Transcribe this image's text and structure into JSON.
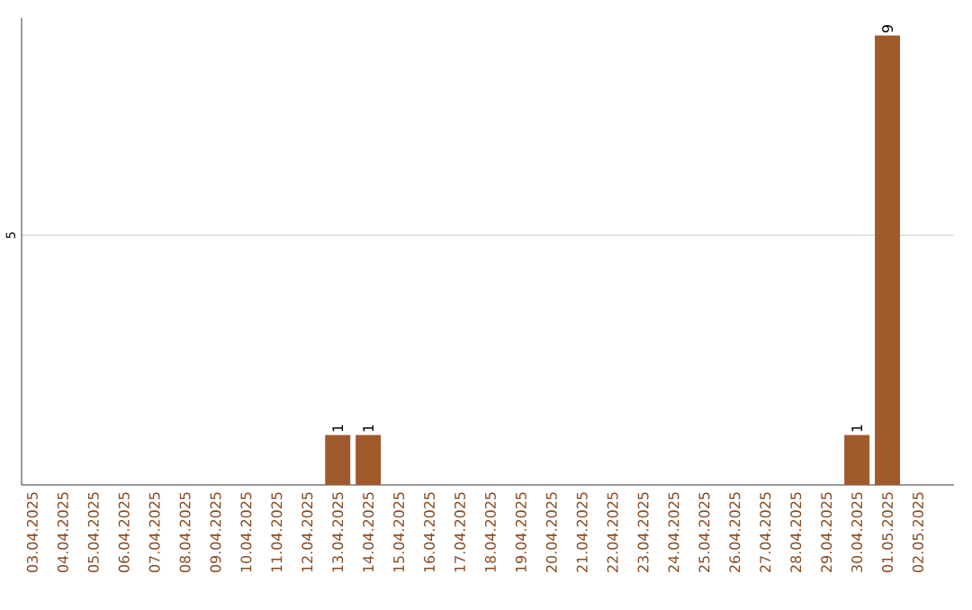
{
  "chart_data": {
    "type": "bar",
    "categories": [
      "03.04.2025",
      "04.04.2025",
      "05.04.2025",
      "06.04.2025",
      "07.04.2025",
      "08.04.2025",
      "09.04.2025",
      "10.04.2025",
      "11.04.2025",
      "12.04.2025",
      "13.04.2025",
      "14.04.2025",
      "15.04.2025",
      "16.04.2025",
      "17.04.2025",
      "18.04.2025",
      "19.04.2025",
      "20.04.2025",
      "21.04.2025",
      "22.04.2025",
      "23.04.2025",
      "24.04.2025",
      "25.04.2025",
      "26.04.2025",
      "27.04.2025",
      "28.04.2025",
      "29.04.2025",
      "30.04.2025",
      "01.05.2025",
      "02.05.2025"
    ],
    "values": [
      0,
      0,
      0,
      0,
      0,
      0,
      0,
      0,
      0,
      0,
      1,
      1,
      0,
      0,
      0,
      0,
      0,
      0,
      0,
      0,
      0,
      0,
      0,
      0,
      0,
      0,
      0,
      1,
      9,
      0
    ],
    "value_labels": [
      null,
      null,
      null,
      null,
      null,
      null,
      null,
      null,
      null,
      null,
      "1",
      "1",
      null,
      null,
      null,
      null,
      null,
      null,
      null,
      null,
      null,
      null,
      null,
      null,
      null,
      null,
      null,
      "1",
      "9",
      null
    ],
    "color": "#a0592a",
    "ylim": [
      0,
      9.35
    ],
    "yticks": [
      5
    ],
    "grid": "y"
  }
}
